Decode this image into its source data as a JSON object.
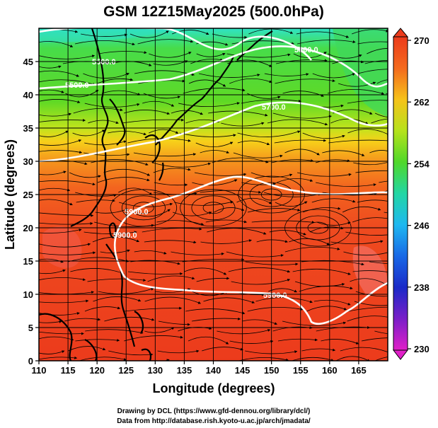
{
  "title": "GSM 12Z15May2025 (500.0hPa)",
  "xlabel": "Longitude (degrees)",
  "ylabel": "Latitude  (degrees)",
  "x_ticks": [
    "110",
    "115",
    "120",
    "125",
    "130",
    "135",
    "140",
    "145",
    "150",
    "155",
    "160",
    "165"
  ],
  "y_ticks": [
    "0",
    "5",
    "10",
    "15",
    "20",
    "25",
    "30",
    "35",
    "40",
    "45"
  ],
  "colorbar": {
    "ticks": [
      "270",
      "262",
      "254",
      "246",
      "238",
      "230"
    ],
    "range": [
      230,
      270
    ]
  },
  "contour_labels": [
    "5500.0",
    "5500.0",
    "5700.0",
    "5800.0",
    "5900.0",
    "5900.0",
    "5900.0"
  ],
  "credits": {
    "line1": "Drawing by DCL (https://www.gfd-dennou.org/library/dcl/)",
    "line2": "Data from http://database.rish.kyoto-u.ac.jp/arch/jmadata/"
  },
  "colors": {
    "warm": "#ee3c1e",
    "orange": "#f48a1c",
    "yellow": "#e2e81a",
    "green": "#52d824",
    "cyan": "#22e2b8",
    "contour": "#ffffff",
    "streamline": "#000000"
  }
}
